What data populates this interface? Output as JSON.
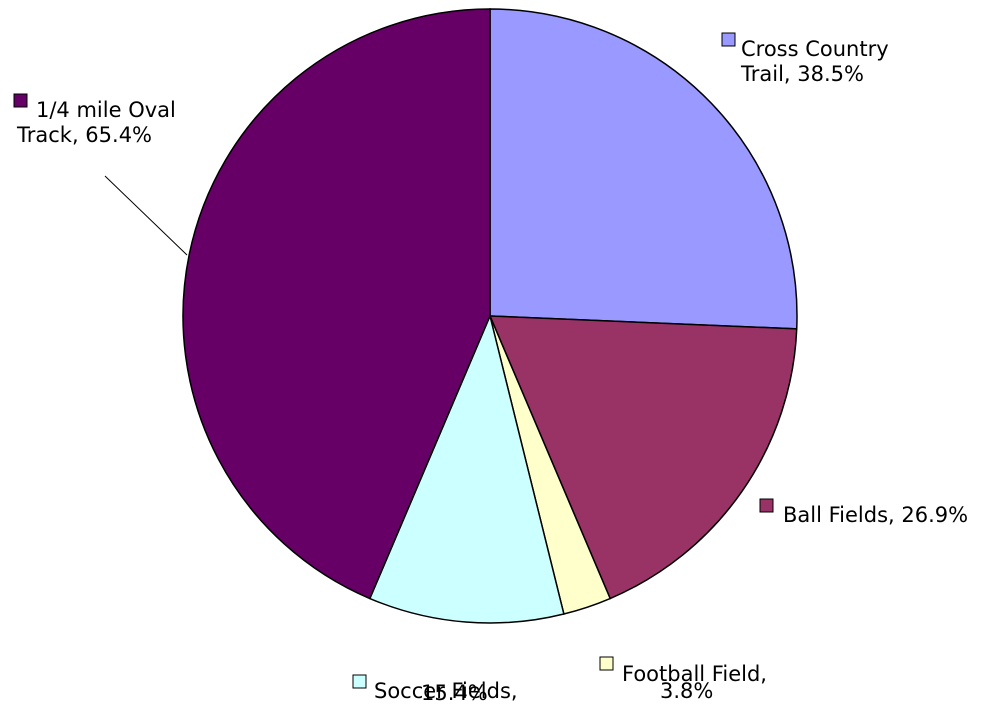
{
  "chart_data": {
    "type": "pie",
    "title": "",
    "slices": [
      {
        "name": "Cross Country Trail",
        "value": 38.5,
        "line1": "Cross Country",
        "line2": "Trail, 38.5%",
        "color": "#9999ff"
      },
      {
        "name": "Ball Fields",
        "value": 26.9,
        "line1": "Ball Fields, 26.9%",
        "line2": "",
        "color": "#993366"
      },
      {
        "name": "Football Field",
        "value": 3.8,
        "line1": "Football Field,",
        "line2": "3.8%",
        "color": "#ffffcc"
      },
      {
        "name": "Soccer Fields",
        "value": 15.4,
        "line1": "Soccer Fields,",
        "line2": "15.4%",
        "color": "#ccffff"
      },
      {
        "name": "1/4 mile Oval Track",
        "value": 65.4,
        "line1": "1/4 mile Oval",
        "line2": "Track, 65.4%",
        "color": "#660066"
      }
    ],
    "start_angle_deg": 0,
    "direction": "clockwise",
    "data_labels": "outside-with-color-key"
  }
}
